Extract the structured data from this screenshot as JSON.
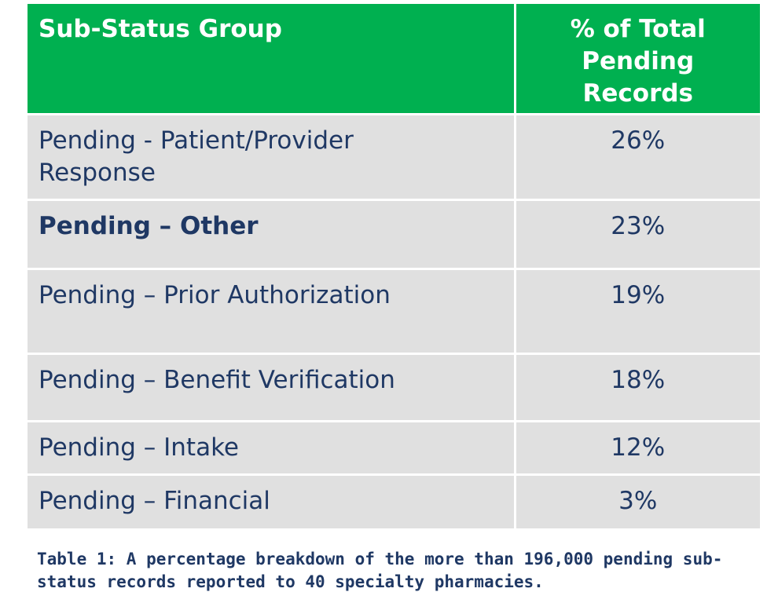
{
  "table": {
    "headers": {
      "group": "Sub-Status Group",
      "percent": "% of Total Pending Records"
    },
    "rows": [
      {
        "group": "Pending - Patient/Provider Response",
        "percent": "26%",
        "bold": false
      },
      {
        "group": "Pending – Other",
        "percent": "23%",
        "bold": true
      },
      {
        "group": "Pending – Prior Authorization",
        "percent": "19%",
        "bold": false
      },
      {
        "group": "Pending – Benefit Verification",
        "percent": "18%",
        "bold": false
      },
      {
        "group": "Pending – Intake",
        "percent": "12%",
        "bold": false
      },
      {
        "group": "Pending – Financial",
        "percent": "3%",
        "bold": false
      }
    ]
  },
  "caption": "Table 1: A percentage breakdown of the more than 196,000 pending sub-status records reported to 40 specialty pharmacies.",
  "colors": {
    "header_bg": "#00b050",
    "header_text": "#ffffff",
    "cell_bg": "#e0e0e0",
    "cell_text": "#1f3864"
  }
}
